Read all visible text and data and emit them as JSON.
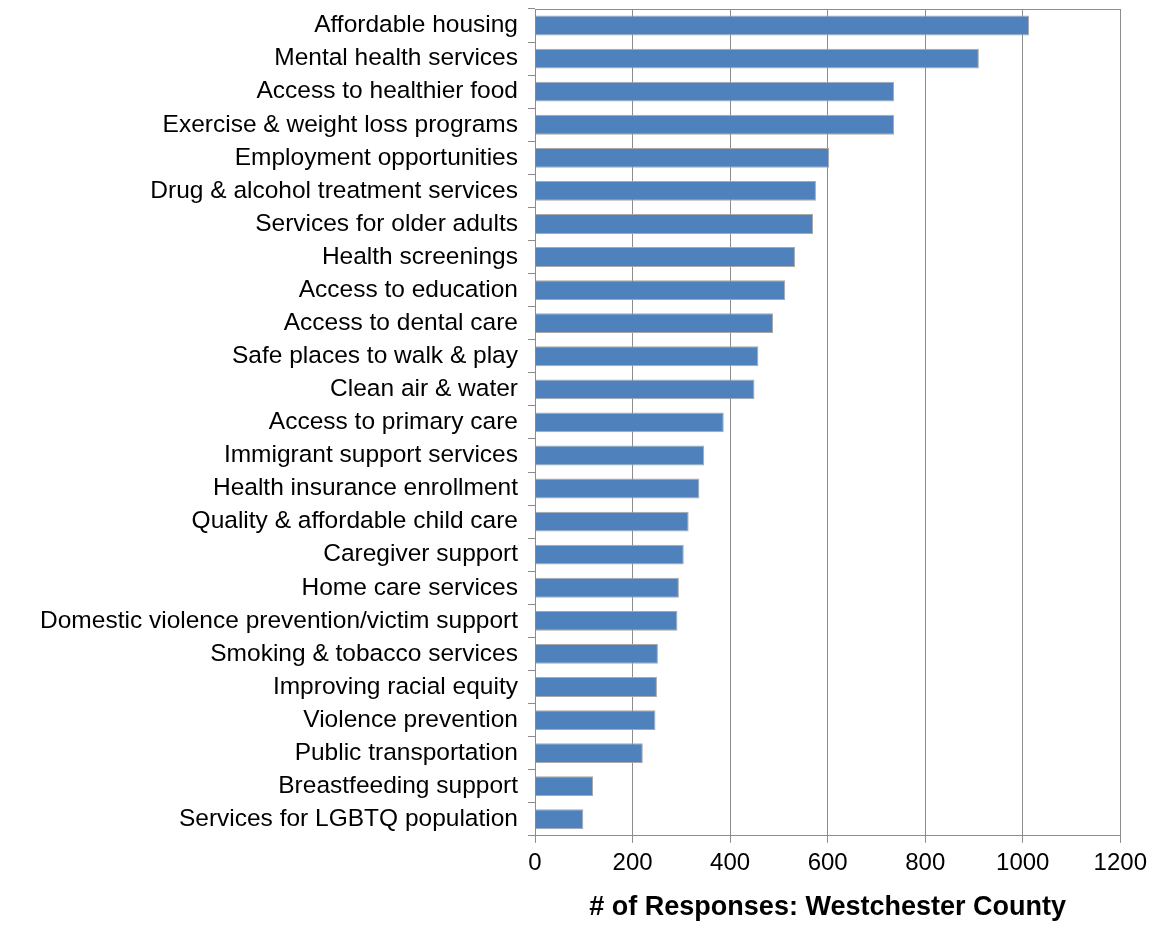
{
  "chart_data": {
    "type": "bar",
    "orientation": "horizontal",
    "categories": [
      "Affordable housing",
      "Mental health services",
      "Access to healthier food",
      "Exercise & weight loss programs",
      "Employment opportunities",
      "Drug & alcohol treatment services",
      "Services for older adults",
      "Health screenings",
      "Access to education",
      "Access to dental care",
      "Safe places to walk & play",
      "Clean air & water",
      "Access to primary care",
      "Immigrant support services",
      "Health insurance enrollment",
      "Quality & affordable child care",
      "Caregiver support",
      "Home care services",
      "Domestic violence prevention/victim support",
      "Smoking & tobacco services",
      "Improving racial equity",
      "Violence prevention",
      "Public transportation",
      "Breastfeeding support",
      "Services for LGBTQ population"
    ],
    "values": [
      1013,
      910,
      736,
      736,
      603,
      576,
      570,
      533,
      513,
      488,
      458,
      450,
      387,
      347,
      337,
      315,
      305,
      295,
      292,
      252,
      250,
      247,
      221,
      119,
      99
    ],
    "color": "#4f81bd",
    "xlabel": "# of Responses: Westchester County",
    "xlim": [
      0,
      1200
    ],
    "xticks": [
      0,
      200,
      400,
      600,
      800,
      1000,
      1200
    ],
    "grid": "x"
  }
}
